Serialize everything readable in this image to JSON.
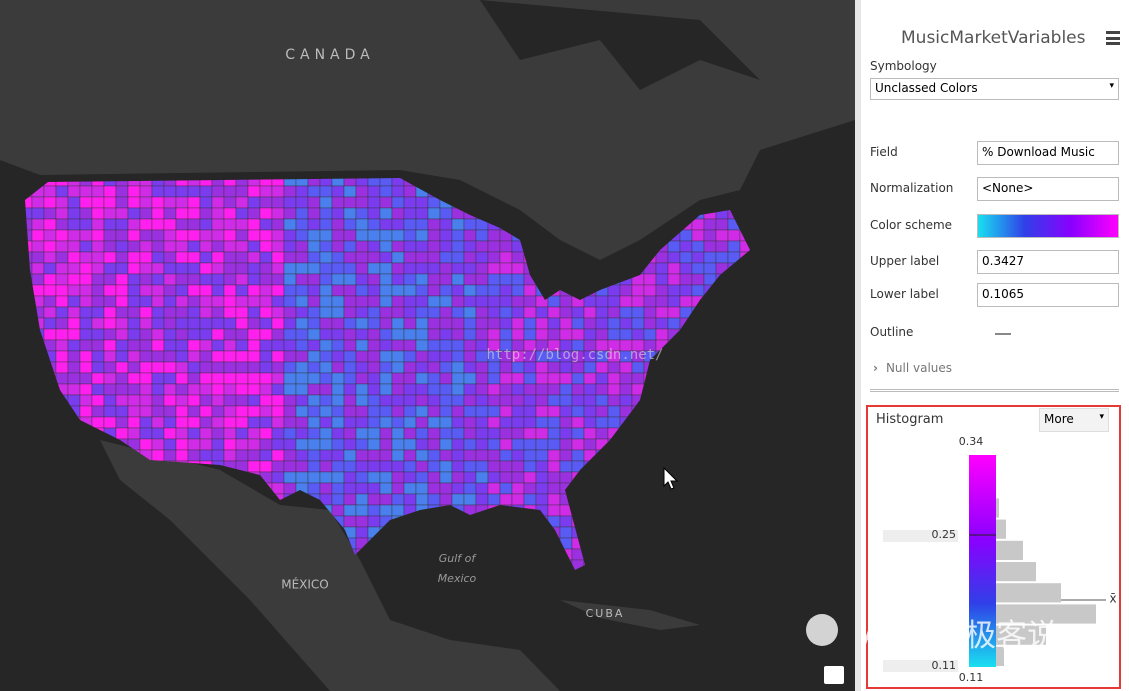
{
  "map": {
    "canada": "CANADA",
    "mexico": "MÉXICO",
    "gulf_line1": "Gulf of",
    "gulf_line2": "Mexico",
    "cuba": "CUBA"
  },
  "watermark": "http://blog.csdn.net/",
  "brand": "ArcGIS极客说",
  "pane": {
    "title": "MusicMarketVariables",
    "section": "Symbology",
    "symbology": "Unclassed Colors",
    "fields": [
      {
        "label": "Field",
        "value": "% Download Music"
      },
      {
        "label": "Normalization",
        "value": "<None>"
      },
      {
        "label": "Color scheme"
      },
      {
        "label": "Upper label",
        "value": "0.3427"
      },
      {
        "label": "Lower label",
        "value": "0.1065"
      },
      {
        "label": "Outline"
      }
    ],
    "null_values": "Null values"
  },
  "histogram": {
    "title": "Histogram",
    "more": "More",
    "top_label": "0.34",
    "upper_handle": "0.25",
    "lower_handle": "0.11",
    "bottom_label": "0.11",
    "mean_label": "x̄",
    "counts": [
      0,
      0,
      3,
      10,
      27,
      40,
      65,
      100,
      50,
      8
    ]
  }
}
